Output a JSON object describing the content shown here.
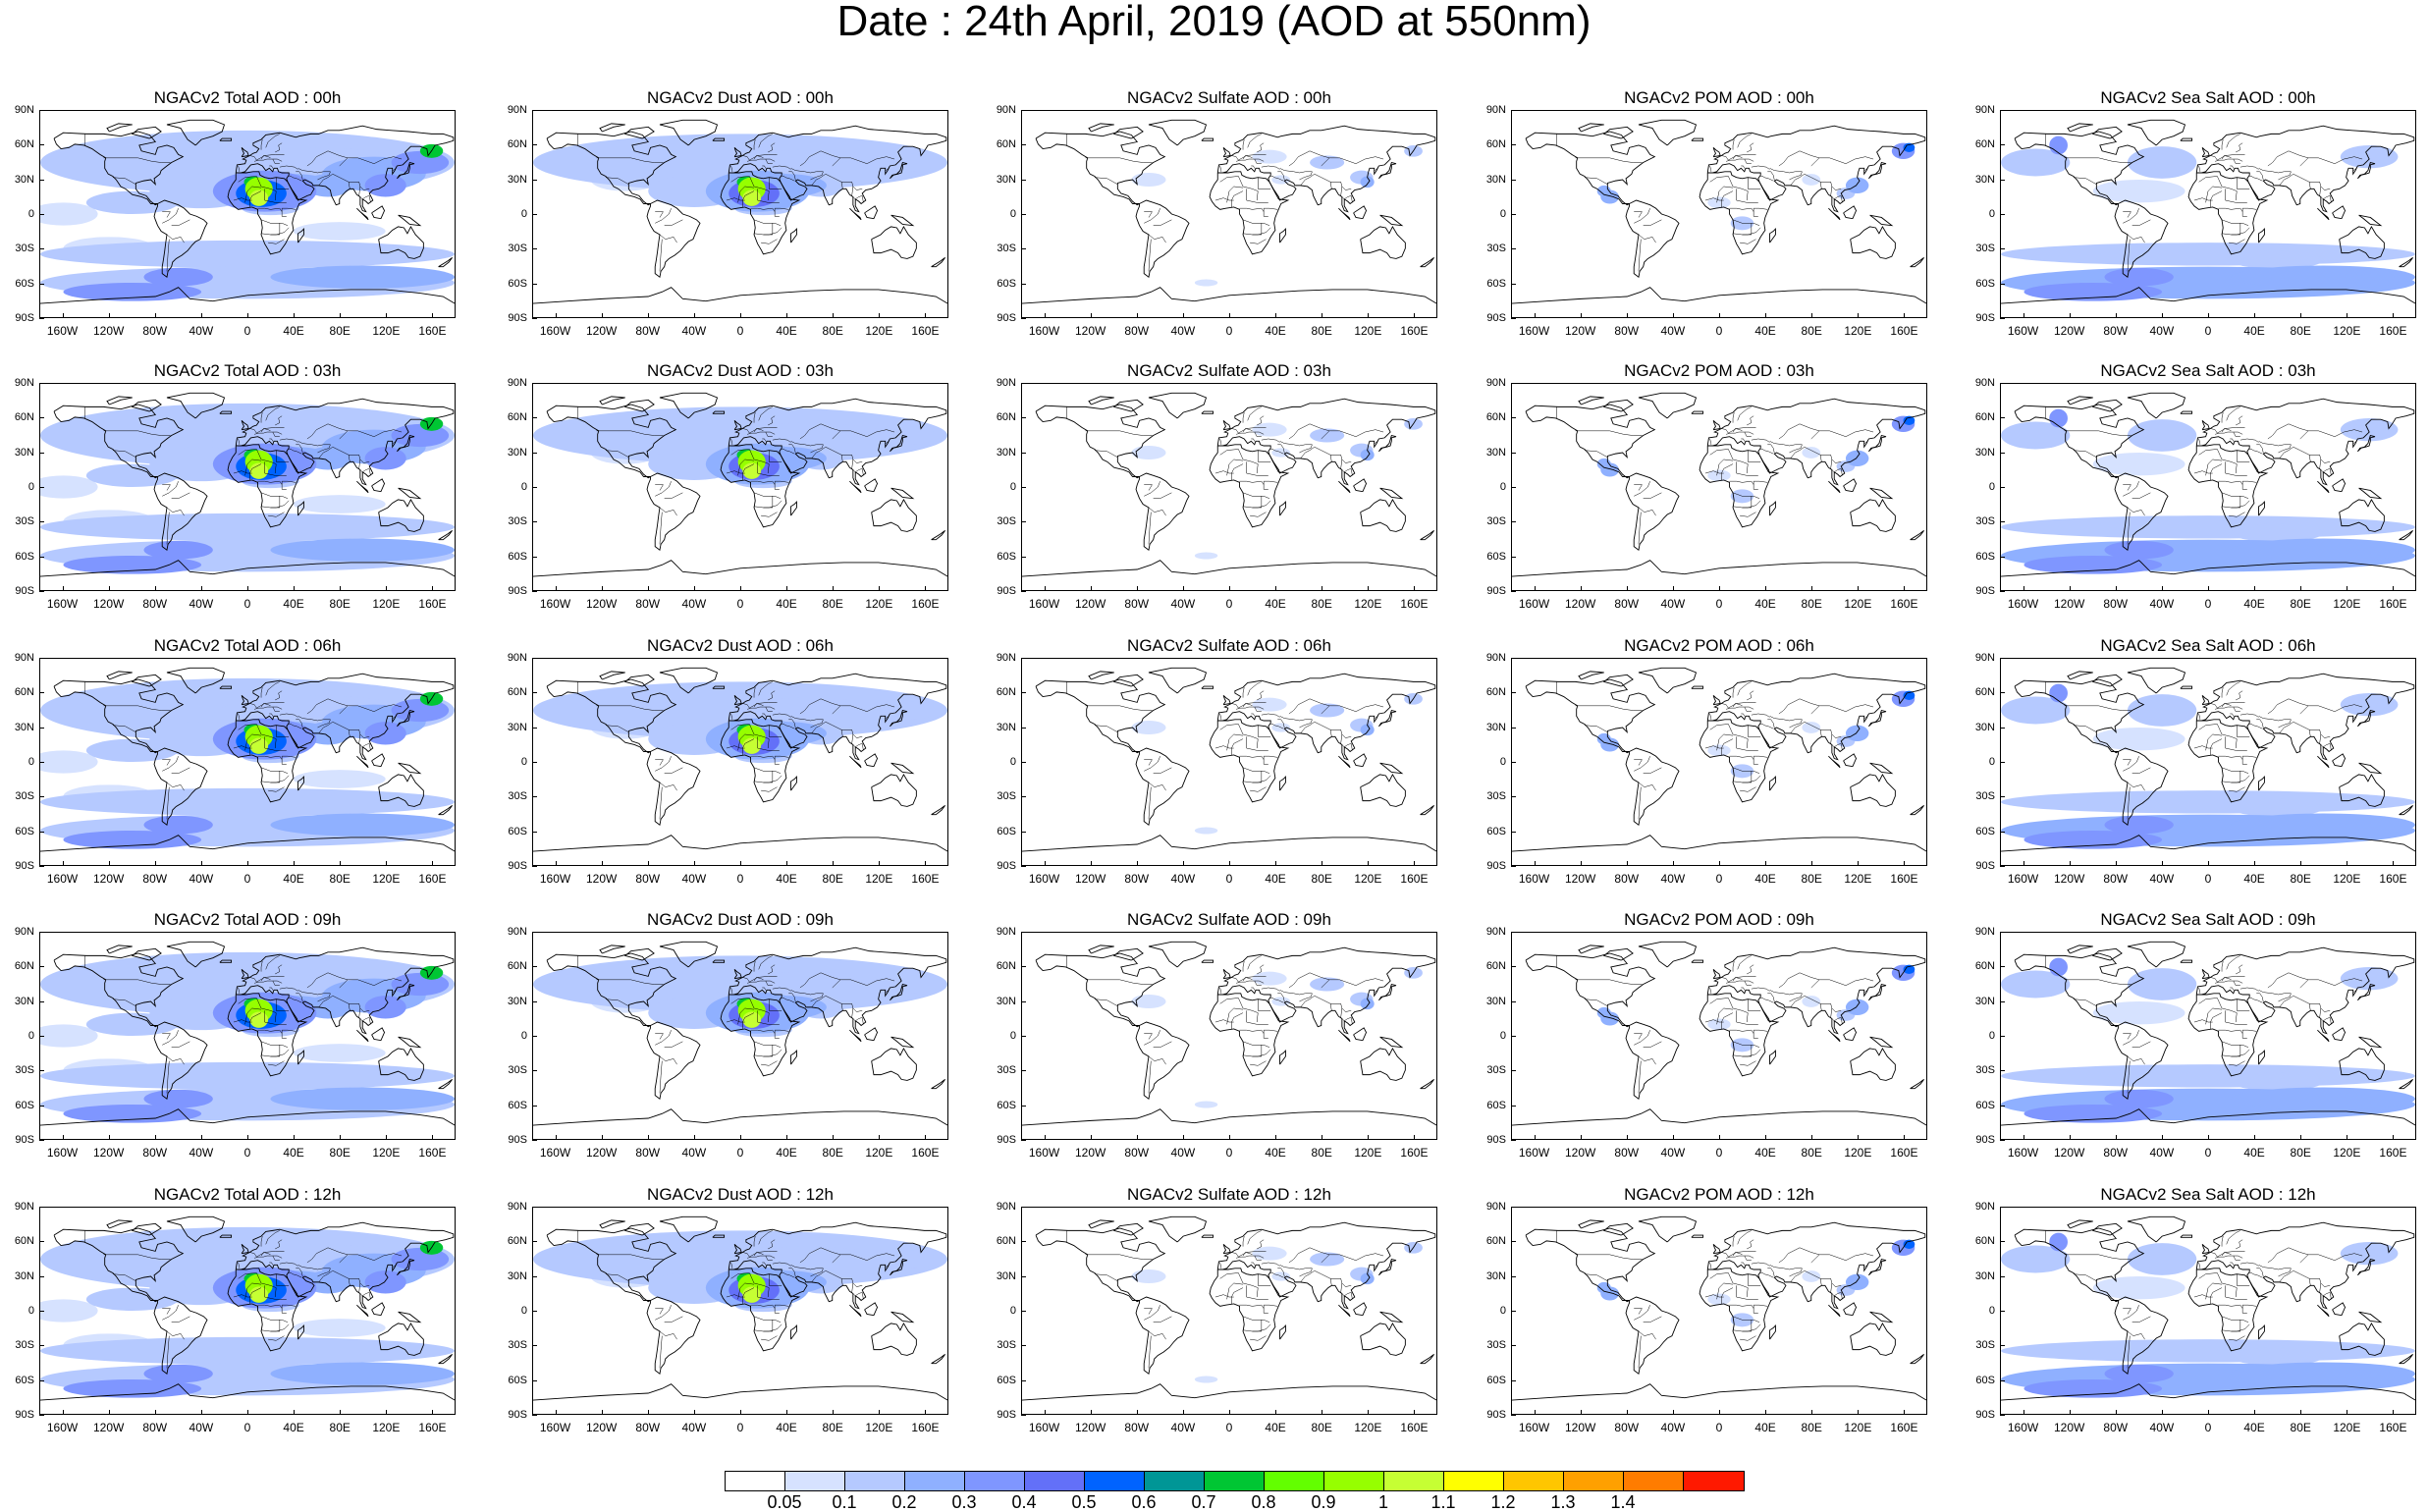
{
  "title": "Date : 24th April, 2019 (AOD at 550nm)",
  "lat_ticks": [
    "90N",
    "60N",
    "30N",
    "0",
    "30S",
    "60S",
    "90S"
  ],
  "lon_ticks": [
    "160W",
    "120W",
    "80W",
    "40W",
    "0",
    "40E",
    "80E",
    "120E",
    "160E"
  ],
  "lat_values": [
    90,
    60,
    30,
    0,
    -30,
    -60,
    -90
  ],
  "lon_values": [
    -160,
    -120,
    -80,
    -40,
    0,
    40,
    80,
    120,
    160
  ],
  "panels": [
    {
      "title": "NGACv2 Total AOD : 00h",
      "species": "total"
    },
    {
      "title": "NGACv2 Dust AOD : 00h",
      "species": "dust"
    },
    {
      "title": "NGACv2 Sulfate AOD : 00h",
      "species": "sulfate"
    },
    {
      "title": "NGACv2 POM AOD : 00h",
      "species": "pom"
    },
    {
      "title": "NGACv2 Sea Salt AOD : 00h",
      "species": "seasalt"
    },
    {
      "title": "NGACv2 Total AOD : 03h",
      "species": "total"
    },
    {
      "title": "NGACv2 Dust AOD : 03h",
      "species": "dust"
    },
    {
      "title": "NGACv2 Sulfate AOD : 03h",
      "species": "sulfate"
    },
    {
      "title": "NGACv2 POM AOD : 03h",
      "species": "pom"
    },
    {
      "title": "NGACv2 Sea Salt AOD : 03h",
      "species": "seasalt"
    },
    {
      "title": "NGACv2 Total AOD : 06h",
      "species": "total"
    },
    {
      "title": "NGACv2 Dust AOD : 06h",
      "species": "dust"
    },
    {
      "title": "NGACv2 Sulfate AOD : 06h",
      "species": "sulfate"
    },
    {
      "title": "NGACv2 POM AOD : 06h",
      "species": "pom"
    },
    {
      "title": "NGACv2 Sea Salt AOD : 06h",
      "species": "seasalt"
    },
    {
      "title": "NGACv2 Total AOD : 09h",
      "species": "total"
    },
    {
      "title": "NGACv2 Dust AOD : 09h",
      "species": "dust"
    },
    {
      "title": "NGACv2 Sulfate AOD : 09h",
      "species": "sulfate"
    },
    {
      "title": "NGACv2 POM AOD : 09h",
      "species": "pom"
    },
    {
      "title": "NGACv2 Sea Salt  AOD : 09h",
      "species": "seasalt"
    },
    {
      "title": "NGACv2 Total AOD  : 12h",
      "species": "total"
    },
    {
      "title": "NGACv2 Dust AOD : 12h",
      "species": "dust"
    },
    {
      "title": "NGACv2 Sulfate AOD : 12h",
      "species": "sulfate"
    },
    {
      "title": "NGACv2 POM  AOD : 12h",
      "species": "pom"
    },
    {
      "title": "NGACv2 Sea Salt AOD : 12h",
      "species": "seasalt"
    }
  ],
  "colorbar": {
    "labels": [
      "0.05",
      "0.1",
      "0.2",
      "0.3",
      "0.4",
      "0.5",
      "0.6",
      "0.7",
      "0.8",
      "0.9",
      "1",
      "1.1",
      "1.2",
      "1.3",
      "1.4"
    ],
    "colors": [
      "#ffffff",
      "#d6e2ff",
      "#b5c9ff",
      "#8fb0ff",
      "#7f96ff",
      "#6370f8",
      "#0063ff",
      "#009696",
      "#00c633",
      "#63ff00",
      "#96ff00",
      "#c6ff33",
      "#ffff00",
      "#ffc600",
      "#ffa000",
      "#ff7c00",
      "#ff1900"
    ]
  }
}
